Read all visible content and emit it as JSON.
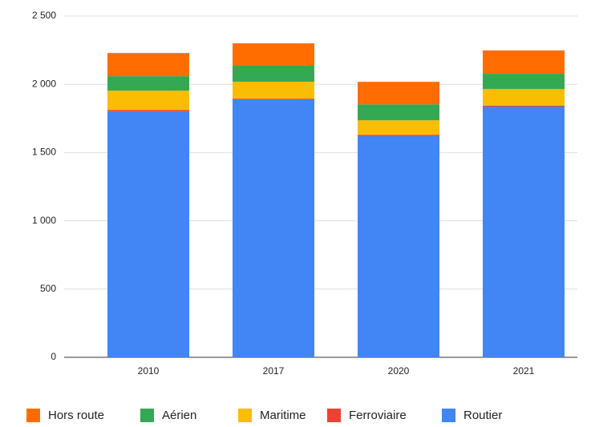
{
  "chart_data": {
    "type": "stacked_bar",
    "categories": [
      "2010",
      "2017",
      "2020",
      "2021"
    ],
    "series": [
      {
        "name": "Hors route",
        "color": "#ff6d01",
        "values": [
          170,
          164,
          165,
          171
        ]
      },
      {
        "name": "Aérien",
        "color": "#34a853",
        "values": [
          106,
          117,
          117,
          111
        ]
      },
      {
        "name": "Maritime",
        "color": "#fbbc04",
        "values": [
          141,
          124,
          106,
          123
        ]
      },
      {
        "name": "Ferroviaire",
        "color": "#ea4335",
        "values": [
          12,
          5,
          10,
          6
        ]
      },
      {
        "name": "Routier",
        "color": "#4285f4",
        "values": [
          1800,
          1890,
          1620,
          1837
        ]
      }
    ],
    "ylim": [
      0,
      2500
    ],
    "yticks": [
      0,
      500,
      {
        "value": 1000,
        "label": "1 000"
      },
      {
        "value": 1500,
        "label": "1 500"
      },
      {
        "value": 2000,
        "label": "2 000"
      },
      {
        "value": 2500,
        "label": "2 500"
      }
    ],
    "grid": true,
    "legend": "bottom"
  }
}
